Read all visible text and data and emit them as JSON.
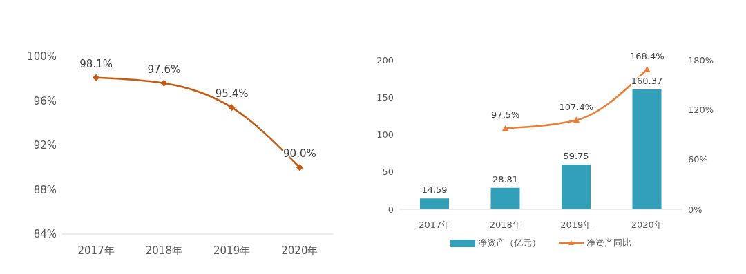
{
  "chart_data": [
    {
      "type": "line",
      "categories": [
        "2017年",
        "2018年",
        "2019年",
        "2020年"
      ],
      "series": [
        {
          "color": "#c55a11",
          "values": [
            98.1,
            97.6,
            95.4,
            90.0
          ],
          "value_labels": [
            "98.1%",
            "97.6%",
            "95.4%",
            "90.0%"
          ]
        }
      ],
      "ylim": [
        84,
        100
      ],
      "yticks": [
        {
          "value": 84,
          "label": "84%"
        },
        {
          "value": 88,
          "label": "88%"
        },
        {
          "value": 92,
          "label": "92%"
        },
        {
          "value": 96,
          "label": "96%"
        },
        {
          "value": 100,
          "label": "100%"
        }
      ],
      "marker": "diamond"
    },
    {
      "type": "bar",
      "categories": [
        "2017年",
        "2018年",
        "2019年",
        "2020年"
      ],
      "series": [
        {
          "name": "净资产（亿元）",
          "color": "#31a0b8",
          "values": [
            14.59,
            28.81,
            59.75,
            160.37
          ],
          "value_labels": [
            "14.59",
            "28.81",
            "59.75",
            "160.37"
          ]
        },
        {
          "name": "净资产同比",
          "type": "line",
          "axis": "y2",
          "color": "#ed7d31",
          "marker": "triangle",
          "values": [
            null,
            97.5,
            107.4,
            168.4
          ],
          "value_labels": [
            null,
            "97.5%",
            "107.4%",
            "168.4%"
          ]
        }
      ],
      "ylim": [
        0,
        200
      ],
      "yticks": [
        0,
        50,
        100,
        150,
        200
      ],
      "y2lim": [
        0,
        180
      ],
      "y2ticks": [
        {
          "value": 0,
          "label": "0%"
        },
        {
          "value": 60,
          "label": "60%"
        },
        {
          "value": 120,
          "label": "120%"
        },
        {
          "value": 180,
          "label": "180%"
        }
      ],
      "legend": "bottom"
    }
  ]
}
